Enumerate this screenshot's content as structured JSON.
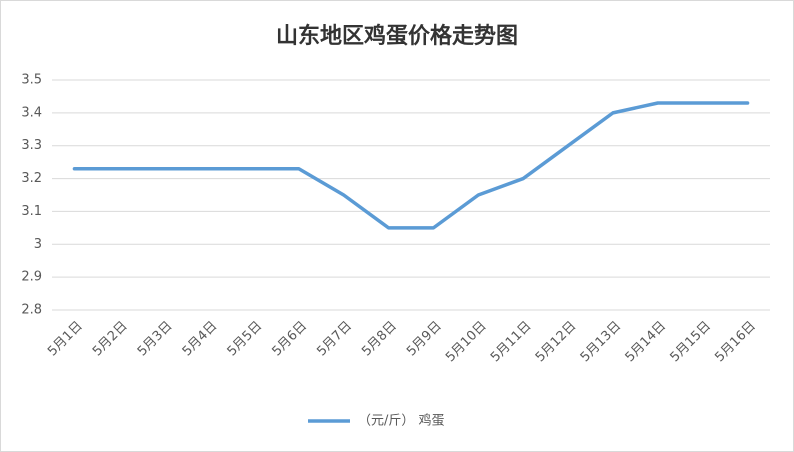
{
  "chart_data": {
    "type": "line",
    "title": "山东地区鸡蛋价格走势图",
    "categories": [
      "5月1日",
      "5月2日",
      "5月3日",
      "5月4日",
      "5月5日",
      "5月6日",
      "5月7日",
      "5月8日",
      "5月9日",
      "5月10日",
      "5月11日",
      "5月12日",
      "5月13日",
      "5月14日",
      "5月15日",
      "5月16日"
    ],
    "series": [
      {
        "name": "（元/斤） 鸡蛋",
        "color": "#5b9bd5",
        "values": [
          3.23,
          3.23,
          3.23,
          3.23,
          3.23,
          3.23,
          3.15,
          3.05,
          3.05,
          3.15,
          3.2,
          3.3,
          3.4,
          3.43,
          3.43,
          3.43
        ]
      }
    ],
    "ylim": [
      2.8,
      3.5
    ],
    "yticks": [
      2.8,
      2.9,
      3,
      3.1,
      3.2,
      3.3,
      3.4,
      3.5
    ],
    "grid": true,
    "legend": "bottom"
  }
}
